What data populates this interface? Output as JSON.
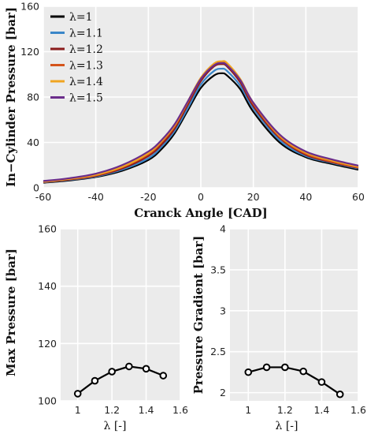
{
  "chart_data": [
    {
      "type": "line",
      "xlabel": "Cranck Angle [CAD]",
      "ylabel": "In−Cylinder Pressure [bar]",
      "xlim": [
        -60,
        60
      ],
      "ylim": [
        0,
        160
      ],
      "xticks": [
        "-60",
        "-40",
        "-20",
        "0",
        "20",
        "40",
        "60"
      ],
      "yticks": [
        "0",
        "40",
        "80",
        "120",
        "160"
      ],
      "legend_position": "top-left",
      "grid": true,
      "x": [
        -60,
        -50,
        -40,
        -30,
        -20,
        -15,
        -10,
        -5,
        0,
        5,
        8,
        10,
        15,
        20,
        30,
        40,
        50,
        60
      ],
      "series": [
        {
          "name": "λ=1",
          "color": "#000000",
          "values": [
            4.5,
            6.5,
            9.5,
            15,
            24.5,
            34,
            48,
            68,
            88,
            99,
            101,
            99,
            87,
            67,
            40,
            27,
            21,
            16
          ]
        },
        {
          "name": "λ=1.1",
          "color": "#3a86c8",
          "values": [
            4.8,
            7,
            10,
            16,
            26,
            36,
            50,
            70,
            91,
            103,
            105,
            103,
            90,
            70,
            42,
            28,
            22,
            17
          ]
        },
        {
          "name": "λ=1.2",
          "color": "#8b1c1c",
          "values": [
            5,
            7.3,
            10.5,
            17,
            28,
            38,
            52,
            73,
            94,
            107,
            109,
            107,
            93,
            72,
            44,
            29,
            22.5,
            17.5
          ]
        },
        {
          "name": "λ=1.3",
          "color": "#d4541b",
          "values": [
            5.2,
            7.6,
            11,
            18,
            29.5,
            40,
            54,
            75,
            96,
            109,
            111,
            109,
            95,
            74,
            45,
            30,
            23,
            18
          ]
        },
        {
          "name": "λ=1.4",
          "color": "#f0a521",
          "values": [
            5.5,
            8,
            11.5,
            18.5,
            30.5,
            41,
            55,
            76,
            97,
            109.5,
            111.5,
            110,
            96,
            75,
            46,
            31,
            24,
            18.5
          ]
        },
        {
          "name": "λ=1.5",
          "color": "#6b2d8b",
          "values": [
            6,
            8.5,
            12.5,
            20,
            32,
            42,
            56,
            76,
            96,
            108,
            110,
            108,
            95,
            75,
            47,
            32,
            25,
            19.5
          ]
        }
      ]
    },
    {
      "type": "line",
      "xlabel": "λ [-]",
      "ylabel": "Max Pressure [bar]",
      "xlim": [
        0.9,
        1.6
      ],
      "ylim": [
        100,
        160
      ],
      "xticks": [
        "1",
        "1.2",
        "1.4",
        "1.6"
      ],
      "yticks": [
        "100",
        "120",
        "140",
        "160"
      ],
      "grid": true,
      "x": [
        1.0,
        1.1,
        1.2,
        1.3,
        1.4,
        1.5
      ],
      "values": [
        102.5,
        107,
        110.2,
        112,
        111.2,
        108.8
      ]
    },
    {
      "type": "line",
      "xlabel": "λ [-]",
      "ylabel": "Pressure Gradient [bar]",
      "xlim": [
        0.9,
        1.6
      ],
      "ylim": [
        1.9,
        4.0
      ],
      "xticks": [
        "1",
        "1.2",
        "1.4",
        "1.6"
      ],
      "yticks": [
        "2",
        "2.5",
        "3",
        "3.5",
        "4"
      ],
      "grid": true,
      "x": [
        1.0,
        1.1,
        1.2,
        1.3,
        1.4,
        1.5
      ],
      "values": [
        2.25,
        2.31,
        2.31,
        2.26,
        2.13,
        1.98
      ]
    }
  ]
}
